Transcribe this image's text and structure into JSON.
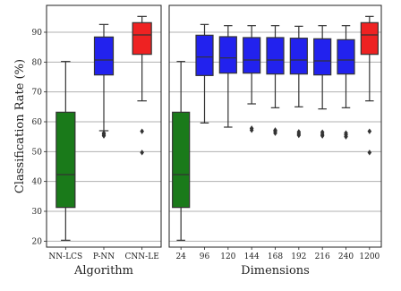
{
  "chart_data": [
    {
      "type": "box",
      "xlabel": "Algorithm",
      "ylabel": "Classification Rate (%)",
      "ylim": [
        18,
        99
      ],
      "yticks": [
        20,
        30,
        40,
        50,
        60,
        70,
        80,
        90
      ],
      "grid": "horizontal",
      "categories": [
        "NN-LCS",
        "P-NN",
        "CNN-LE"
      ],
      "boxes": [
        {
          "category": "NN-LCS",
          "color": "#1a7a1a",
          "min": 20.3,
          "q1": 31.3,
          "median": 42.3,
          "q3": 63.2,
          "max": 80.2,
          "outliers": []
        },
        {
          "category": "P-NN",
          "color": "#2222ee",
          "min": 57.0,
          "q1": 75.7,
          "median": 80.7,
          "q3": 88.4,
          "max": 92.6,
          "outliers": [
            55.3,
            55.8,
            56.2
          ]
        },
        {
          "category": "CNN-LE",
          "color": "#ee2222",
          "min": 67.0,
          "q1": 82.6,
          "median": 89.1,
          "q3": 93.2,
          "max": 95.3,
          "outliers": [
            49.7,
            56.8
          ]
        }
      ]
    },
    {
      "type": "box",
      "xlabel": "Dimensions",
      "ylabel": "",
      "ylim": [
        18,
        99
      ],
      "yticks": [
        20,
        30,
        40,
        50,
        60,
        70,
        80,
        90
      ],
      "grid": "horizontal",
      "categories": [
        "24",
        "96",
        "120",
        "144",
        "168",
        "192",
        "216",
        "240",
        "1200"
      ],
      "boxes": [
        {
          "category": "24",
          "color": "#1a7a1a",
          "min": 20.3,
          "q1": 31.3,
          "median": 42.3,
          "q3": 63.2,
          "max": 80.2,
          "outliers": []
        },
        {
          "category": "96",
          "color": "#2222ee",
          "min": 59.6,
          "q1": 75.5,
          "median": 81.7,
          "q3": 89.0,
          "max": 92.6,
          "outliers": []
        },
        {
          "category": "120",
          "color": "#2222ee",
          "min": 58.2,
          "q1": 76.3,
          "median": 81.4,
          "q3": 88.5,
          "max": 92.2,
          "outliers": []
        },
        {
          "category": "144",
          "color": "#2222ee",
          "min": 66.0,
          "q1": 76.3,
          "median": 80.7,
          "q3": 88.2,
          "max": 92.2,
          "outliers": [
            57.2,
            57.8
          ]
        },
        {
          "category": "168",
          "color": "#2222ee",
          "min": 64.7,
          "q1": 76.0,
          "median": 80.7,
          "q3": 88.2,
          "max": 92.2,
          "outliers": [
            56.2,
            56.8,
            57.2
          ]
        },
        {
          "category": "192",
          "color": "#2222ee",
          "min": 65.0,
          "q1": 76.0,
          "median": 80.7,
          "q3": 88.0,
          "max": 92.0,
          "outliers": [
            55.5,
            56.0,
            56.6
          ]
        },
        {
          "category": "216",
          "color": "#2222ee",
          "min": 64.3,
          "q1": 75.7,
          "median": 80.4,
          "q3": 87.8,
          "max": 92.2,
          "outliers": [
            55.3,
            55.8,
            56.5
          ]
        },
        {
          "category": "240",
          "color": "#2222ee",
          "min": 64.7,
          "q1": 76.0,
          "median": 80.7,
          "q3": 87.5,
          "max": 92.2,
          "outliers": [
            55.0,
            55.6,
            56.2
          ]
        },
        {
          "category": "1200",
          "color": "#ee2222",
          "min": 67.0,
          "q1": 82.6,
          "median": 89.1,
          "q3": 93.2,
          "max": 95.3,
          "outliers": [
            49.7,
            56.8
          ]
        }
      ]
    }
  ]
}
